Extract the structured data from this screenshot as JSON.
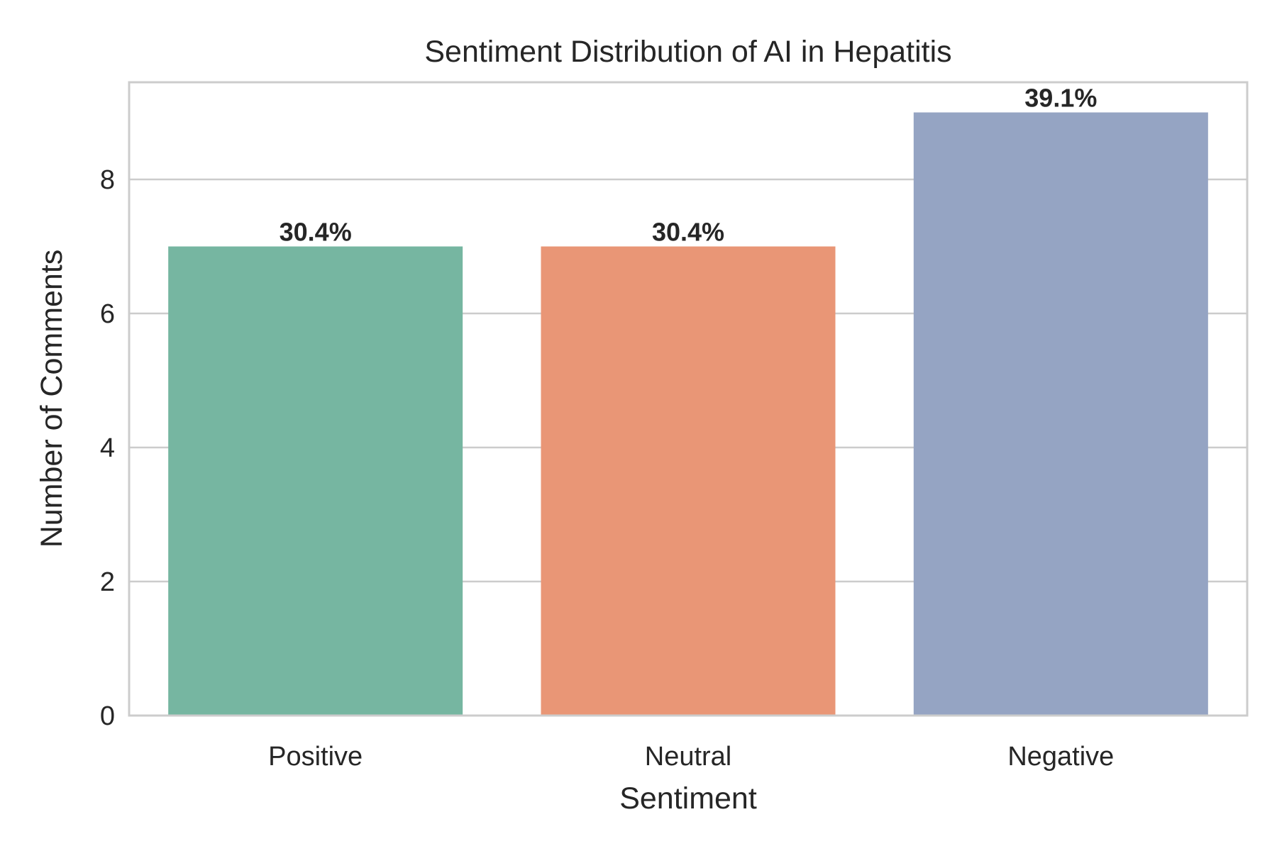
{
  "chart_data": {
    "type": "bar",
    "title": "Sentiment Distribution of AI in Hepatitis",
    "xlabel": "Sentiment",
    "ylabel": "Number of Comments",
    "categories": [
      "Positive",
      "Neutral",
      "Negative"
    ],
    "values": [
      7,
      7,
      9
    ],
    "data_labels": [
      "30.4%",
      "30.4%",
      "39.1%"
    ],
    "colors": [
      "#76b6a1",
      "#e99676",
      "#95a4c3"
    ],
    "ylim": [
      0,
      9.45
    ],
    "yticks": [
      0,
      2,
      4,
      6,
      8
    ],
    "ytick_labels": [
      "0",
      "2",
      "4",
      "6",
      "8"
    ],
    "grid": "horizontal",
    "legend": "none"
  }
}
